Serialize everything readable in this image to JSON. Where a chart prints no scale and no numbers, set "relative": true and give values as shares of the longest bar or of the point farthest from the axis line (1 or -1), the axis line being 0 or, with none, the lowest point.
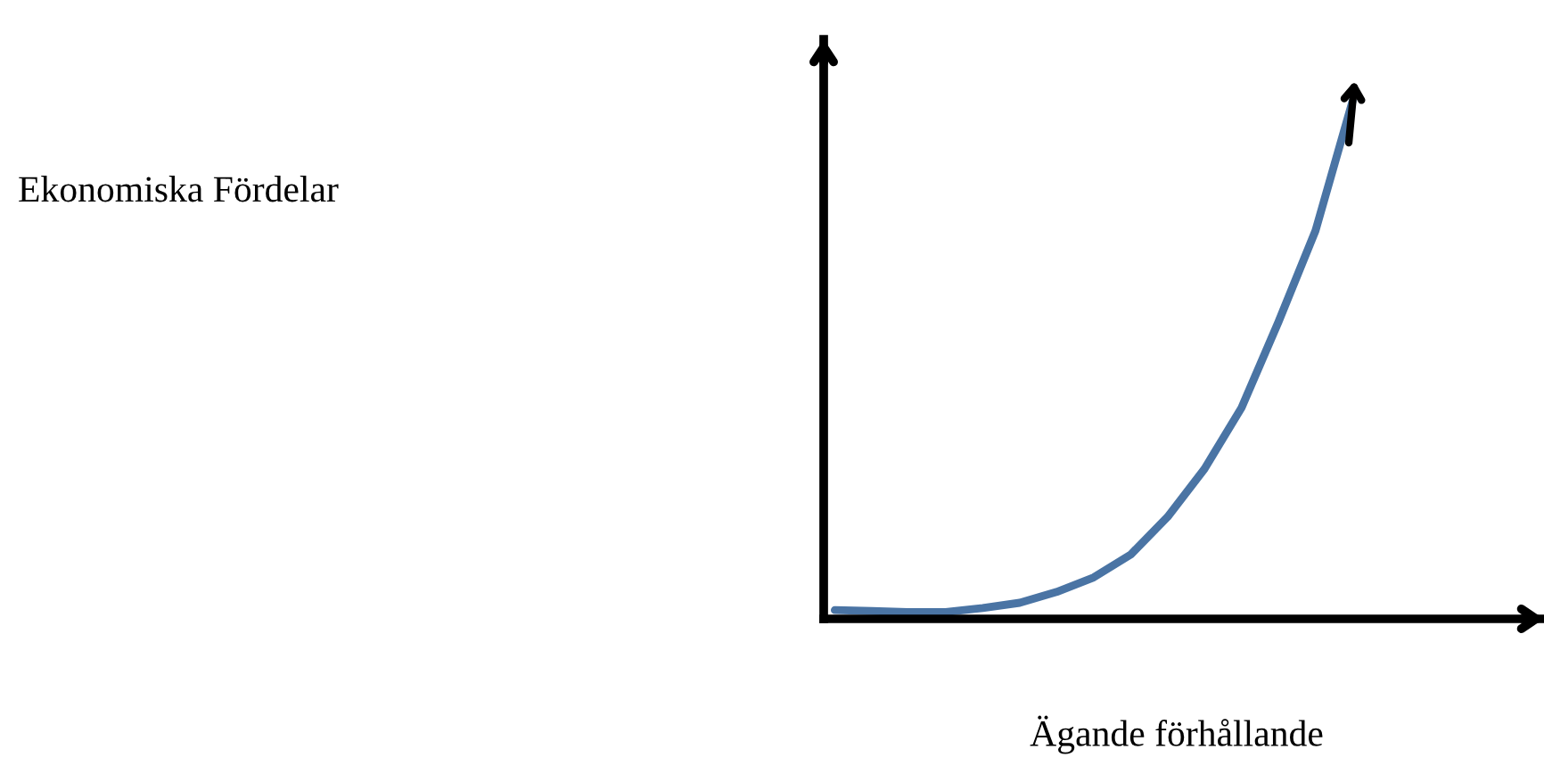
{
  "chart_data": {
    "type": "line",
    "relative": true,
    "annotations": [
      "Ekonomiska Fördelar"
    ],
    "xlabel": "Ägande förhållande",
    "categories": [
      null,
      null,
      null,
      null,
      null,
      null,
      null,
      null,
      null,
      null,
      null,
      null,
      null,
      null,
      null
    ],
    "series": [
      {
        "color": "#4a74a4",
        "values": [
          0.017,
          0.015,
          0.013,
          0.013,
          0.021,
          0.031,
          0.052,
          0.08,
          0.124,
          0.197,
          0.29,
          0.408,
          0.574,
          0.75,
          1
        ]
      }
    ],
    "legend": false,
    "marker": "none",
    "line_style": "solid"
  }
}
